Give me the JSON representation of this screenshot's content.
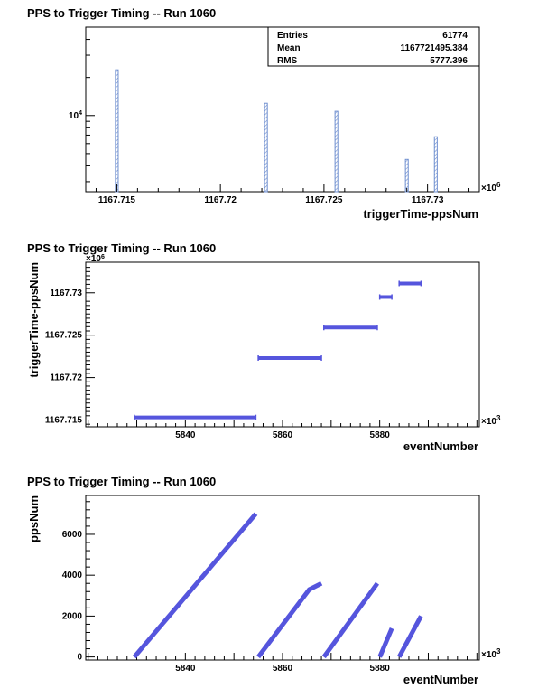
{
  "chart_data": [
    {
      "type": "histogram",
      "title": "PPS to Trigger Timing -- Run 1060",
      "xlabel": "triggerTime-ppsNum",
      "ylabel": "",
      "x_multiplier": "×10",
      "x_multiplier_exp": "6",
      "xlim": [
        1167.7135,
        1167.7325
      ],
      "x_ticks": [
        "1167.715",
        "1167.72",
        "1167.725",
        "1167.73"
      ],
      "y_scale": "log",
      "ylim": [
        2500,
        50000
      ],
      "y_ticks": [
        {
          "base": "10",
          "exp": "4",
          "value": 10000
        }
      ],
      "bins": [
        {
          "x": 1167.715,
          "value": 23000
        },
        {
          "x": 1167.7222,
          "value": 12500
        },
        {
          "x": 1167.7256,
          "value": 10800
        },
        {
          "x": 1167.729,
          "value": 4500
        },
        {
          "x": 1167.7304,
          "value": 6800
        }
      ],
      "stats": [
        {
          "label": "Entries",
          "value": "61774"
        },
        {
          "label": "Mean",
          "value": "1167721495.384"
        },
        {
          "label": "RMS",
          "value": "5777.396"
        }
      ],
      "color": "#6f8fcf"
    },
    {
      "type": "scatter",
      "title": "PPS to Trigger Timing -- Run 1060",
      "xlabel": "eventNumber",
      "ylabel": "triggerTime-ppsNum",
      "x_multiplier": "×10",
      "x_multiplier_exp": "3",
      "y_multiplier": "×10",
      "y_multiplier_exp": "6",
      "xlim": [
        5819.5,
        5900.5
      ],
      "ylim": [
        1167.7142,
        1167.7336
      ],
      "x_ticks": [
        5840,
        5860,
        5880
      ],
      "y_ticks": [
        "1167.715",
        "1167.72",
        "1167.725",
        "1167.73"
      ],
      "segments": [
        {
          "x": [
            5829.5,
            5854.5
          ],
          "y": 1167.7153
        },
        {
          "x": [
            5855.0,
            5868.0
          ],
          "y": 1167.7223
        },
        {
          "x": [
            5868.5,
            5879.5
          ],
          "y": 1167.7259
        },
        {
          "x": [
            5880.0,
            5882.5
          ],
          "y": 1167.7295
        },
        {
          "x": [
            5884.0,
            5888.5
          ],
          "y": 1167.7311
        }
      ],
      "color": "#5555dd"
    },
    {
      "type": "scatter",
      "title": "PPS to Trigger Timing -- Run 1060",
      "xlabel": "eventNumber",
      "ylabel": "ppsNum",
      "x_multiplier": "×10",
      "x_multiplier_exp": "3",
      "xlim": [
        5819.5,
        5900.5
      ],
      "ylim": [
        -150,
        7900
      ],
      "x_ticks": [
        5840,
        5860,
        5880
      ],
      "y_ticks": [
        0,
        2000,
        4000,
        6000
      ],
      "segments": [
        {
          "points": [
            [
              5829.5,
              0
            ],
            [
              5854.5,
              7000
            ]
          ]
        },
        {
          "points": [
            [
              5855.0,
              0
            ],
            [
              5865.5,
              3300
            ],
            [
              5868.0,
              3600
            ]
          ]
        },
        {
          "points": [
            [
              5868.5,
              0
            ],
            [
              5879.5,
              3600
            ]
          ]
        },
        {
          "points": [
            [
              5880.0,
              0
            ],
            [
              5882.5,
              1400
            ]
          ]
        },
        {
          "points": [
            [
              5884.0,
              0
            ],
            [
              5888.5,
              2000
            ]
          ]
        }
      ],
      "color": "#5555dd"
    }
  ]
}
